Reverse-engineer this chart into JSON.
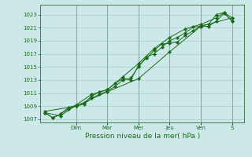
{
  "xlabel": "Pression niveau de la mer( hPa )",
  "bg_color": "#cce8e8",
  "grid_color": "#aacccc",
  "line_color": "#1a6b1a",
  "ylim": [
    1006.5,
    1024.5
  ],
  "yticks": [
    1007,
    1009,
    1011,
    1013,
    1015,
    1017,
    1019,
    1021,
    1023
  ],
  "day_labels": [
    "Dim",
    "Mar",
    "Mer",
    "Jeu",
    "Ven",
    "S"
  ],
  "day_positions": [
    2.0,
    4.0,
    6.0,
    8.0,
    10.0,
    12.0
  ],
  "xlim": [
    -0.3,
    12.8
  ],
  "series": [
    {
      "x": [
        0.0,
        0.5,
        1.0,
        1.5,
        2.0,
        2.5,
        3.0,
        3.5,
        4.0,
        4.5,
        5.0,
        5.5,
        6.0,
        6.5,
        7.0,
        7.5,
        8.0,
        8.5,
        9.0,
        9.5,
        10.0,
        10.5,
        11.0,
        11.5,
        12.0
      ],
      "y": [
        1008.0,
        1007.2,
        1007.8,
        1008.5,
        1009.0,
        1009.3,
        1010.2,
        1010.8,
        1011.3,
        1012.0,
        1013.0,
        1013.3,
        1015.0,
        1016.5,
        1017.0,
        1018.0,
        1019.0,
        1019.5,
        1020.2,
        1021.1,
        1021.2,
        1021.2,
        1022.0,
        1023.2,
        1022.0
      ]
    },
    {
      "x": [
        0.0,
        0.5,
        1.0,
        1.5,
        2.0,
        2.5,
        3.0,
        3.5,
        4.0,
        4.5,
        5.0,
        5.5,
        6.0,
        6.5,
        7.0,
        7.5,
        8.0,
        8.5,
        9.0,
        9.5,
        10.0,
        10.5,
        11.0,
        11.5,
        12.0
      ],
      "y": [
        1008.0,
        1007.2,
        1007.8,
        1008.8,
        1009.1,
        1009.5,
        1010.5,
        1011.2,
        1011.5,
        1012.5,
        1013.2,
        1013.0,
        1015.2,
        1016.3,
        1017.5,
        1018.5,
        1018.6,
        1018.8,
        1019.8,
        1020.5,
        1021.3,
        1021.5,
        1023.0,
        1023.3,
        1022.5
      ]
    },
    {
      "x": [
        0.0,
        1.0,
        2.0,
        3.0,
        4.0,
        5.0,
        6.0,
        7.0,
        8.0,
        9.0,
        10.0,
        11.0,
        11.5,
        12.0
      ],
      "y": [
        1008.0,
        1007.5,
        1009.2,
        1010.8,
        1011.5,
        1013.5,
        1015.5,
        1017.8,
        1019.5,
        1020.8,
        1021.5,
        1022.5,
        1023.3,
        1022.0
      ]
    },
    {
      "x": [
        0.0,
        2.0,
        4.0,
        6.0,
        8.0,
        10.0,
        12.0
      ],
      "y": [
        1008.2,
        1009.0,
        1011.2,
        1013.2,
        1017.3,
        1021.2,
        1022.5
      ]
    }
  ]
}
